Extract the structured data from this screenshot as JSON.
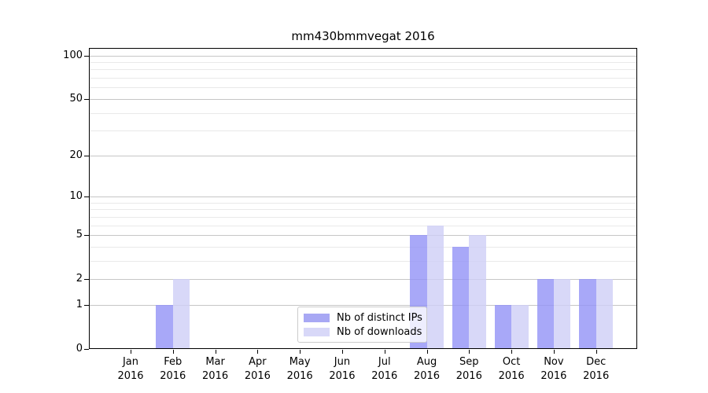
{
  "chart_data": {
    "type": "bar",
    "title": "mm430bmmvegat 2016",
    "categories": [
      {
        "line1": "Jan",
        "line2": "2016"
      },
      {
        "line1": "Feb",
        "line2": "2016"
      },
      {
        "line1": "Mar",
        "line2": "2016"
      },
      {
        "line1": "Apr",
        "line2": "2016"
      },
      {
        "line1": "May",
        "line2": "2016"
      },
      {
        "line1": "Jun",
        "line2": "2016"
      },
      {
        "line1": "Jul",
        "line2": "2016"
      },
      {
        "line1": "Aug",
        "line2": "2016"
      },
      {
        "line1": "Sep",
        "line2": "2016"
      },
      {
        "line1": "Oct",
        "line2": "2016"
      },
      {
        "line1": "Nov",
        "line2": "2016"
      },
      {
        "line1": "Dec",
        "line2": "2016"
      }
    ],
    "series": [
      {
        "name": "Nb of distinct IPs",
        "values": [
          0,
          1,
          0,
          0,
          0,
          0,
          0,
          5,
          4,
          1,
          2,
          2
        ],
        "color": "#a8a8f4",
        "fill_rgba": "rgba(146,146,246,0.8)"
      },
      {
        "name": "Nb of downloads",
        "values": [
          0,
          2,
          0,
          0,
          0,
          0,
          0,
          6,
          5,
          1,
          2,
          2
        ],
        "color": "#d8d8f8",
        "fill_rgba": "rgba(206,206,246,0.8)"
      }
    ],
    "yscale": "log10(1+v)",
    "y_top": 112.7,
    "yticks": [
      {
        "label": "100",
        "value": 100
      },
      {
        "label": "50",
        "value": 50
      },
      {
        "label": "20",
        "value": 20
      },
      {
        "label": "10",
        "value": 10
      },
      {
        "label": "5",
        "value": 5
      },
      {
        "label": "2",
        "value": 2
      },
      {
        "label": "1",
        "value": 1
      },
      {
        "label": "0",
        "value": 0
      }
    ],
    "grid_major_values": [
      1,
      2,
      5,
      10,
      20,
      50,
      100
    ],
    "grid_minor_values": [
      3,
      4,
      6,
      7,
      8,
      9,
      30,
      40,
      60,
      70,
      80,
      90
    ],
    "grid_major_color": "#c6c6c6",
    "grid_minor_color": "#e9e9e9",
    "legend_position": "lower center"
  }
}
